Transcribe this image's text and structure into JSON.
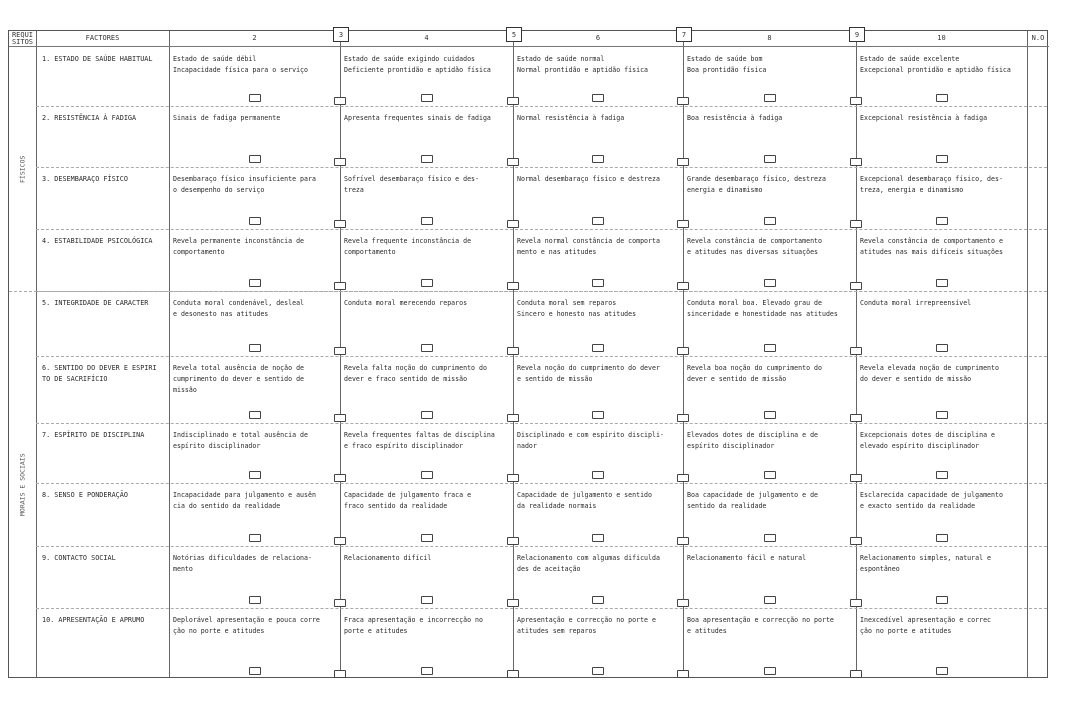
{
  "header": {
    "requisitos": "REQUI\nSITOS",
    "factores": "FACTORES",
    "scores": [
      "2",
      "4",
      "6",
      "8",
      "10"
    ],
    "boundary_scores": [
      "3",
      "5",
      "7",
      "9"
    ],
    "no": "N.O"
  },
  "groups": [
    {
      "label": "FÍSICOS",
      "rows": [
        0,
        3
      ]
    },
    {
      "label": "MORAIS E SOCIAIS",
      "rows": [
        4,
        9
      ]
    }
  ],
  "rows": [
    {
      "factor": "1. ESTADO DE SAÚDE HABITUAL",
      "levels": [
        "Estado de saúde débil\nIncapacidade física para o serviço",
        "Estado de saúde exigindo cuidados\nDeficiente prontidão e aptidão física",
        "Estado de saúde normal\nNormal prontidão e aptidão física",
        "Estado de saúde bom\nBoa prontidão física",
        "Estado de saúde excelente\nExcepcional prontidão e aptidão física"
      ]
    },
    {
      "factor": "2. RESISTÊNCIA À FADIGA",
      "levels": [
        "Sinais de fadiga permanente",
        "Apresenta frequentes sinais de fadiga",
        "Normal resistência à fadiga",
        "Boa resistência à fadiga",
        "Excepcional resistência à fadiga"
      ]
    },
    {
      "factor": "3. DESEMBARAÇO FÍSICO",
      "levels": [
        "Desembaraço físico insuficiente para\no desempenho do serviço",
        "Sofrível desembaraço físico e des-\ntreza",
        "Normal desembaraço físico e destreza",
        "Grande desembaraço físico, destreza\nenergia e dinamismo",
        "Excepcional desembaraço físico, des-\ntreza, energia e dinamismo"
      ]
    },
    {
      "factor": "4. ESTABILIDADE PSICOLÓGICA",
      "levels": [
        "Revela permanente inconstância de\ncomportamento",
        "Revela frequente inconstância de\ncomportamento",
        "Revela normal constância de comporta\nmento e nas atitudes",
        "Revela constância de comportamento\ne atitudes nas diversas situações",
        "Revela constância de comportamento e\natitudes nas mais difíceis situações"
      ]
    },
    {
      "factor": "5. INTEGRIDADE DE CARACTER",
      "levels": [
        "Conduta moral condenável, desleal\ne desonesto nas atitudes",
        "Conduta moral merecendo reparos",
        "Conduta moral sem reparos\nSincero e honesto nas atitudes",
        "Conduta moral boa. Elevado grau de\nsinceridade e honestidade nas atitudes",
        "Conduta moral irrepreensível"
      ]
    },
    {
      "factor": "6. SENTIDO DO DEVER E ESPIRI\n   TO DE SACRIFÍCIO",
      "levels": [
        "Revela total ausência de noção de\ncumprimento do dever e sentido de\nmissão",
        "Revela falta noção do cumprimento do\ndever e fraco sentido de missão",
        "Revela noção do cumprimento do dever\ne sentido de missão",
        "Revela boa noção do cumprimento do\ndever e sentido de missão",
        "Revela elevada noção de cumprimento\ndo dever e sentido de missão"
      ]
    },
    {
      "factor": "7. ESPÍRITO DE DISCIPLINA",
      "levels": [
        "Indisciplinado e total ausência de\nespírito disciplinador",
        "Revela frequentes faltas de disciplina\ne fraco espírito disciplinador",
        "Disciplinado e com espírito discipli-\nnador",
        "Elevados dotes de disciplina e de\nespírito disciplinador",
        "Excepcionais dotes de disciplina e\nelevado espírito disciplinador"
      ]
    },
    {
      "factor": "8. SENSO E PONDERAÇÃO",
      "levels": [
        "Incapacidade para julgamento e ausên\ncia do sentido da realidade",
        "Capacidade de julgamento fraca e\nfraco sentido da realidade",
        "Capacidade de julgamento e sentido\nda realidade normais",
        "Boa capacidade de julgamento e de\nsentido da realidade",
        "Esclarecida capacidade de julgamento\ne exacto sentido da realidade"
      ]
    },
    {
      "factor": "9. CONTACTO SOCIAL",
      "levels": [
        "Notórias dificuldades de relaciona-\nmento",
        "Relacionamento difícil",
        "Relacionamento com algumas dificulda\ndes de aceitação",
        "Relacionamento fácil e natural",
        "Relacionamento simples, natural e\nespontâneo"
      ]
    },
    {
      "factor": "10. APRESENTAÇÃO E APRUMO",
      "levels": [
        "Deplorável apresentação e pouca corre\nção no porte e atitudes",
        "Fraca apresentação e incorrecção no\nporte e atitudes",
        "Apresentação e correcção no porte e\natitudes sem reparos",
        "Boa apresentação e correcção no porte\ne atitudes",
        "Inexcedível apresentação e correc\nção no porte e atitudes"
      ]
    }
  ]
}
